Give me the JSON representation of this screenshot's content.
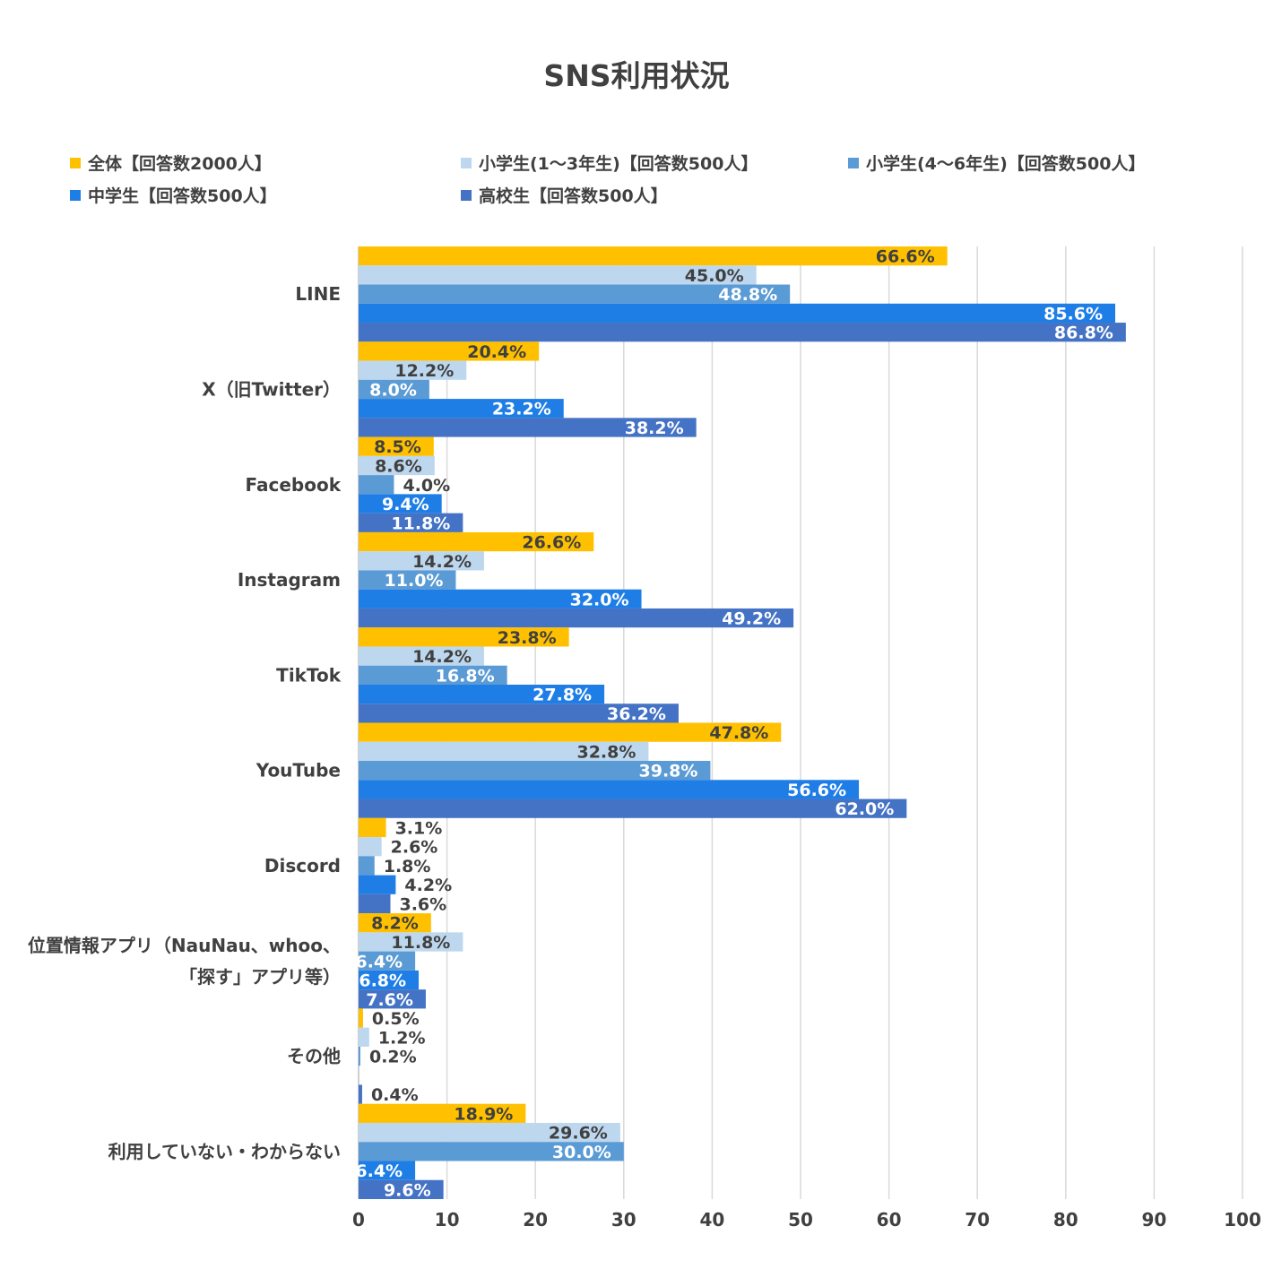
{
  "chart_data": {
    "type": "bar",
    "orientation": "horizontal",
    "title": "SNS利用状況",
    "xlabel": "",
    "ylabel": "",
    "xlim": [
      0,
      100
    ],
    "x_ticks": [
      "0",
      "10",
      "20",
      "30",
      "40",
      "50",
      "60",
      "70",
      "80",
      "90",
      "100"
    ],
    "grid": "vertical",
    "legend_position": "top",
    "categories": [
      [
        "LINE"
      ],
      [
        "X（旧Twitter）"
      ],
      [
        "Facebook"
      ],
      [
        "Instagram"
      ],
      [
        "TikTok"
      ],
      [
        "YouTube"
      ],
      [
        "Discord"
      ],
      [
        "位置情報アプリ（NauNau、whoo、",
        "「探す」アプリ等）"
      ],
      [
        "その他"
      ],
      [
        "利用していない・わからない"
      ]
    ],
    "series": [
      {
        "name": "全体【回答数2000人】",
        "color": "#FFC000",
        "values": [
          66.6,
          20.4,
          8.5,
          26.6,
          23.8,
          47.8,
          3.1,
          8.2,
          0.5,
          18.9
        ],
        "labels": [
          "66.6%",
          "20.4%",
          "8.5%",
          "26.6%",
          "23.8%",
          "47.8%",
          "3.1%",
          "8.2%",
          "0.5%",
          "18.9%"
        ]
      },
      {
        "name": "小学生(1～3年生)【回答数500人】",
        "color": "#BDD7EE",
        "values": [
          45.0,
          12.2,
          8.6,
          14.2,
          14.2,
          32.8,
          2.6,
          11.8,
          1.2,
          29.6
        ],
        "labels": [
          "45.0%",
          "12.2%",
          "8.6%",
          "14.2%",
          "14.2%",
          "32.8%",
          "2.6%",
          "11.8%",
          "1.2%",
          "29.6%"
        ]
      },
      {
        "name": "小学生(4～6年生)【回答数500人】",
        "color": "#5B9BD5",
        "values": [
          48.8,
          8.0,
          4.0,
          11.0,
          16.8,
          39.8,
          1.8,
          6.4,
          0.2,
          30.0
        ],
        "labels": [
          "48.8%",
          "8.0%",
          "4.0%",
          "11.0%",
          "16.8%",
          "39.8%",
          "1.8%",
          "6.4%",
          "0.2%",
          "30.0%"
        ]
      },
      {
        "name": "中学生【回答数500人】",
        "color": "#1F7EE6",
        "values": [
          85.6,
          23.2,
          9.4,
          32.0,
          27.8,
          56.6,
          4.2,
          6.8,
          0.0,
          6.4
        ],
        "labels": [
          "85.6%",
          "23.2%",
          "9.4%",
          "32.0%",
          "27.8%",
          "56.6%",
          "4.2%",
          "6.8%",
          "",
          "6.4%"
        ]
      },
      {
        "name": "高校生【回答数500人】",
        "color": "#4472C4",
        "values": [
          86.8,
          38.2,
          11.8,
          49.2,
          36.2,
          62.0,
          3.6,
          7.6,
          0.4,
          9.6
        ],
        "labels": [
          "86.8%",
          "38.2%",
          "11.8%",
          "49.2%",
          "36.2%",
          "62.0%",
          "3.6%",
          "7.6%",
          "0.4%",
          "9.6%"
        ]
      }
    ]
  }
}
